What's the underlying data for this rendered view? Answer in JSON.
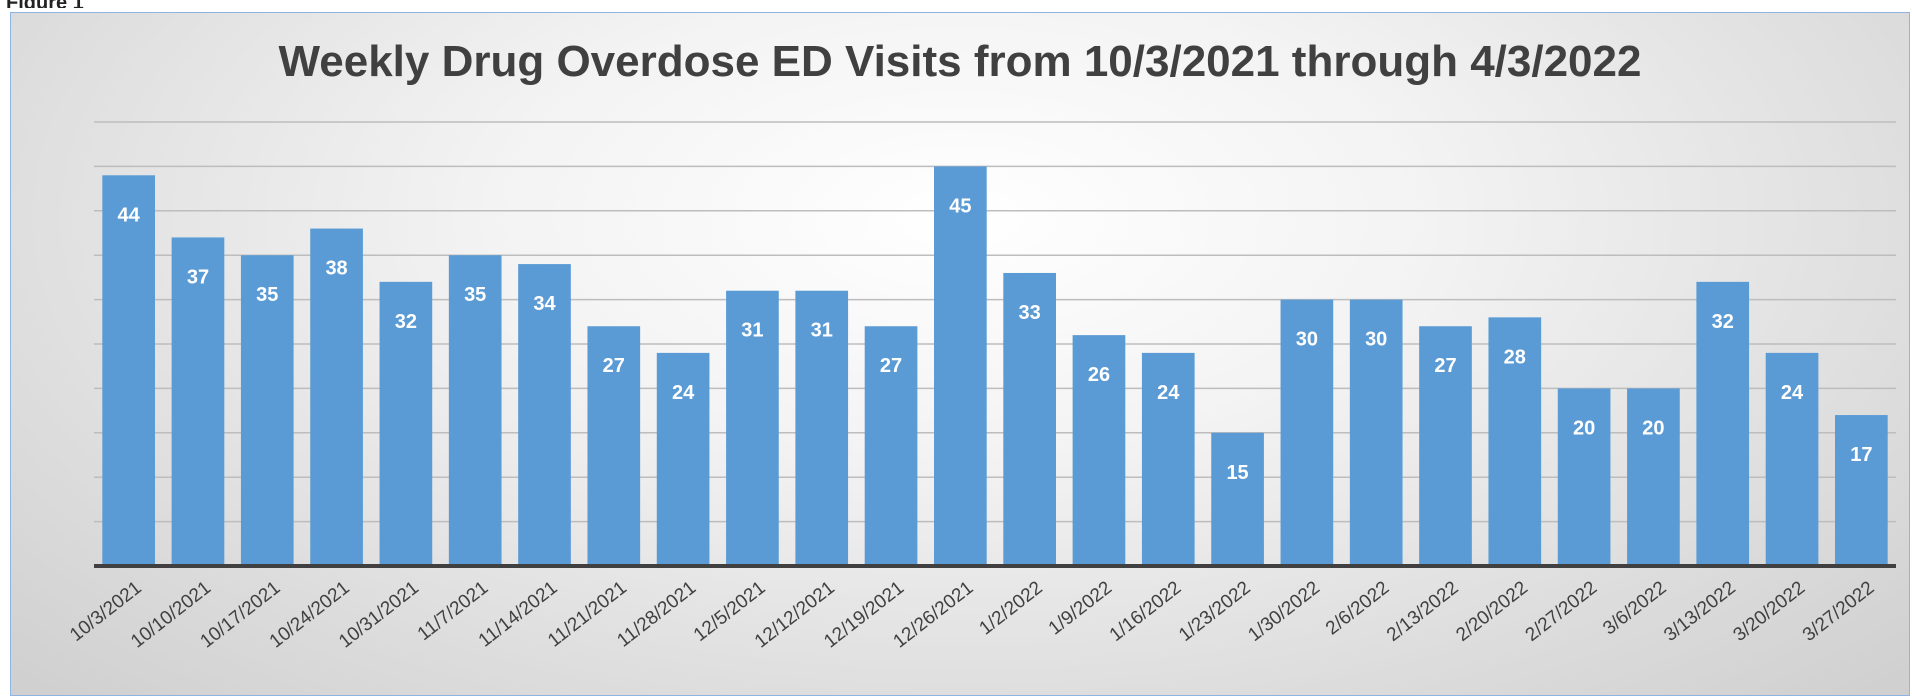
{
  "figure_label": "Figure 1",
  "chart_data": {
    "type": "bar",
    "title": "Weekly Drug Overdose ED Visits from 10/3/2021 through 4/3/2022",
    "xlabel": "",
    "ylabel": "",
    "ylim": [
      0,
      50
    ],
    "grid": true,
    "bar_color": "#5b9bd5",
    "categories": [
      "10/3/2021",
      "10/10/2021",
      "10/17/2021",
      "10/24/2021",
      "10/31/2021",
      "11/7/2021",
      "11/14/2021",
      "11/21/2021",
      "11/28/2021",
      "12/5/2021",
      "12/12/2021",
      "12/19/2021",
      "12/26/2021",
      "1/2/2022",
      "1/9/2022",
      "1/16/2022",
      "1/23/2022",
      "1/30/2022",
      "2/6/2022",
      "2/13/2022",
      "2/20/2022",
      "2/27/2022",
      "3/6/2022",
      "3/13/2022",
      "3/20/2022",
      "3/27/2022"
    ],
    "values": [
      44,
      37,
      35,
      38,
      32,
      35,
      34,
      27,
      24,
      31,
      31,
      27,
      45,
      33,
      26,
      24,
      15,
      30,
      30,
      27,
      28,
      20,
      20,
      32,
      24,
      17
    ]
  }
}
